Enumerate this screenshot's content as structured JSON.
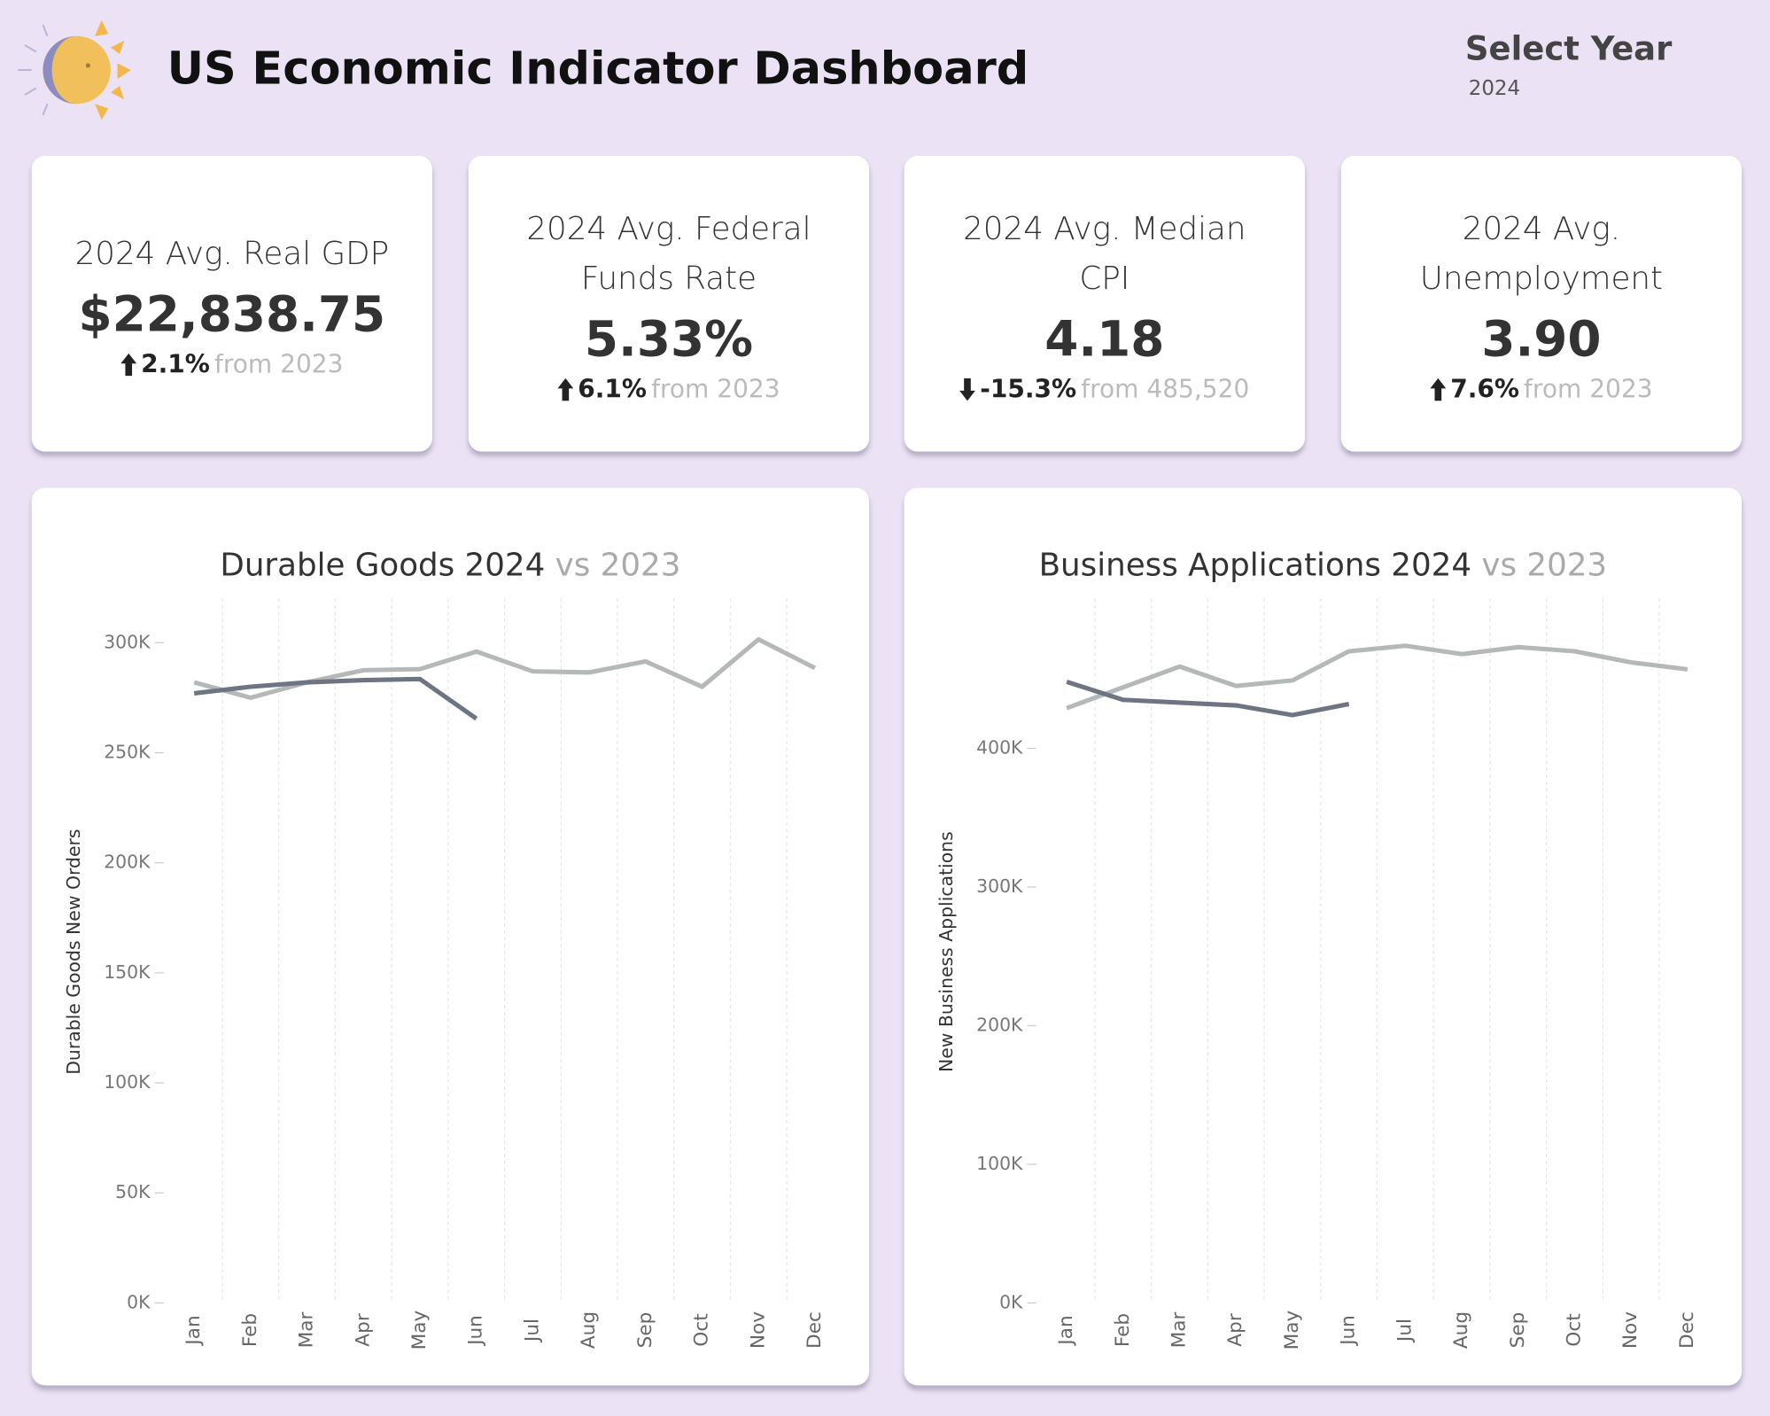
{
  "header": {
    "title": "US Economic Indicator Dashboard",
    "filter_label": "Select Year",
    "filter_value": "2024"
  },
  "kpis": [
    {
      "label": "2024 Avg. Real GDP",
      "value": "$22,838.75",
      "direction": "up",
      "change": "2.1%",
      "comparison": "from 2023"
    },
    {
      "label": "2024 Avg. Federal Funds Rate",
      "value": "5.33%",
      "direction": "up",
      "change": "6.1%",
      "comparison": "from 2023"
    },
    {
      "label": "2024 Avg. Median CPI",
      "value": "4.18",
      "direction": "down",
      "change": "-15.3%",
      "comparison": "from 485,520"
    },
    {
      "label": "2024 Avg. Unemployment",
      "value": "3.90",
      "direction": "up",
      "change": "7.6%",
      "comparison": "from 2023"
    }
  ],
  "chart_data": [
    {
      "type": "line",
      "title": "Durable Goods 2024",
      "title_suffix": "vs 2023",
      "y_label": "Durable Goods New Orders",
      "categories": [
        "Jan",
        "Feb",
        "Mar",
        "Apr",
        "May",
        "Jun",
        "Jul",
        "Aug",
        "Sep",
        "Oct",
        "Nov",
        "Dec"
      ],
      "series": [
        {
          "color": "#b5b8b9",
          "values": [
            282000,
            275000,
            282000,
            287500,
            288000,
            296000,
            287000,
            286500,
            291500,
            280000,
            301500,
            288500
          ]
        },
        {
          "color": "#6e7582",
          "values": [
            277000,
            280000,
            282000,
            283000,
            283500,
            265500,
            null,
            null,
            null,
            null,
            null,
            null
          ]
        }
      ],
      "ylim": [
        0,
        315000
      ],
      "yticks": [
        {
          "value": 0,
          "label": "0K"
        },
        {
          "value": 50000,
          "label": "50K"
        },
        {
          "value": 100000,
          "label": "100K"
        },
        {
          "value": 150000,
          "label": "150K"
        },
        {
          "value": 200000,
          "label": "200K"
        },
        {
          "value": 250000,
          "label": "250K"
        },
        {
          "value": 300000,
          "label": "300K"
        }
      ]
    },
    {
      "type": "line",
      "title": "Business Applications 2024",
      "title_suffix": "vs 2023",
      "y_label": "New Business Applications",
      "categories": [
        "Jan",
        "Feb",
        "Mar",
        "Apr",
        "May",
        "Jun",
        "Jul",
        "Aug",
        "Sep",
        "Oct",
        "Nov",
        "Dec"
      ],
      "series": [
        {
          "color": "#b5b8b9",
          "values": [
            429000,
            444000,
            459000,
            445000,
            449000,
            470000,
            474000,
            468000,
            473000,
            470000,
            462000,
            457000
          ]
        },
        {
          "color": "#6e7582",
          "values": [
            448000,
            435000,
            433000,
            431000,
            424000,
            432000,
            null,
            null,
            null,
            null,
            null,
            null
          ]
        }
      ],
      "ylim": [
        0,
        500000
      ],
      "yticks": [
        {
          "value": 0,
          "label": "0K"
        },
        {
          "value": 100000,
          "label": "100K"
        },
        {
          "value": 200000,
          "label": "200K"
        },
        {
          "value": 300000,
          "label": "300K"
        },
        {
          "value": 400000,
          "label": "400K"
        }
      ]
    }
  ]
}
